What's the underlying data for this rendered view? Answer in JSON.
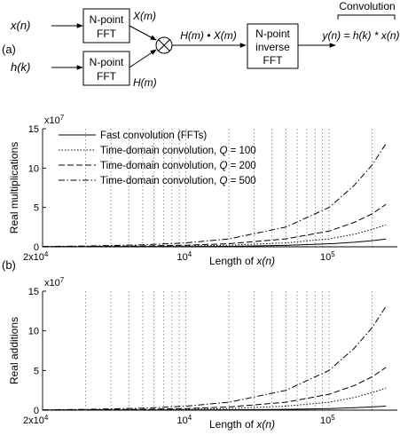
{
  "diagram": {
    "panel_label": "(a)",
    "input_x": "x(n)",
    "input_h": "h(k)",
    "fft_top": [
      "N-point",
      "FFT"
    ],
    "fft_bottom": [
      "N-point",
      "FFT"
    ],
    "xm_label": "X(m)",
    "hm_label": "H(m)",
    "multiplier_symbol": "⊗",
    "product_label": "H(m) • X(m)",
    "ifft": [
      "N-point",
      "inverse",
      "FFT"
    ],
    "output_label": "y(n) = h(k) * x(n)",
    "convolution_label": "Convolution"
  },
  "colors": {
    "lines": "#000000",
    "grid": "#777777",
    "background": "#ffffff"
  },
  "chart_data": [
    {
      "type": "line",
      "panel_label": "",
      "ylabel": "Real multiplications",
      "xlabel": "Length of x(n)",
      "exponent_label": "x10^7",
      "x_scale": "log",
      "xlim": [
        1000,
        300000
      ],
      "ylim": [
        0,
        15
      ],
      "y_ticks": [
        0,
        5,
        10,
        15
      ],
      "x_tick_labels": [
        "2x10^4",
        "10^4",
        "10^5"
      ],
      "grid": "vertical dotted at log minor ticks",
      "legend_position": "top-left",
      "x": [
        1000,
        2000,
        5000,
        10000,
        20000,
        50000,
        100000,
        150000,
        200000,
        250000
      ],
      "series": [
        {
          "name": "Fast convolution (FFTs)",
          "style": "solid",
          "values": [
            0.002,
            0.005,
            0.02,
            0.03,
            0.06,
            0.18,
            0.38,
            0.58,
            0.78,
            0.98
          ]
        },
        {
          "name": "Time-domain convolution, Q = 100",
          "style": "dotted",
          "values": [
            0.01,
            0.02,
            0.05,
            0.1,
            0.2,
            0.5,
            1.0,
            1.6,
            2.2,
            2.8
          ]
        },
        {
          "name": "Time-domain convolution, Q = 200",
          "style": "dashed",
          "values": [
            0.02,
            0.04,
            0.1,
            0.2,
            0.4,
            1.0,
            2.0,
            3.1,
            4.2,
            5.4
          ]
        },
        {
          "name": "Time-domain convolution, Q = 500",
          "style": "dashdot",
          "values": [
            0.05,
            0.1,
            0.25,
            0.5,
            1.0,
            2.5,
            5.0,
            7.8,
            10.4,
            13.1
          ]
        }
      ]
    },
    {
      "type": "line",
      "panel_label": "(b)",
      "ylabel": "Real additions",
      "xlabel": "Length of x(n)",
      "exponent_label": "x10^7",
      "x_scale": "log",
      "xlim": [
        1000,
        300000
      ],
      "ylim": [
        0,
        15
      ],
      "y_ticks": [
        0,
        5,
        10,
        15
      ],
      "x_tick_labels": [
        "2x10^4",
        "10^4",
        "10^5"
      ],
      "grid": "vertical dotted at log minor ticks",
      "legend_position": "none",
      "x": [
        1000,
        2000,
        5000,
        10000,
        20000,
        50000,
        100000,
        150000,
        200000,
        250000
      ],
      "series": [
        {
          "name": "",
          "style": "solid",
          "values": [
            0.002,
            0.005,
            0.01,
            0.02,
            0.04,
            0.1,
            0.2,
            0.3,
            0.4,
            0.5
          ]
        },
        {
          "name": "",
          "style": "dotted",
          "values": [
            0.01,
            0.02,
            0.05,
            0.1,
            0.2,
            0.5,
            1.0,
            1.6,
            2.2,
            2.8
          ]
        },
        {
          "name": "",
          "style": "dashed",
          "values": [
            0.02,
            0.04,
            0.1,
            0.2,
            0.4,
            1.0,
            2.0,
            3.1,
            4.2,
            5.4
          ]
        },
        {
          "name": "",
          "style": "dashdot",
          "values": [
            0.05,
            0.1,
            0.25,
            0.5,
            1.0,
            2.5,
            5.0,
            7.8,
            10.4,
            13.1
          ]
        }
      ]
    }
  ]
}
